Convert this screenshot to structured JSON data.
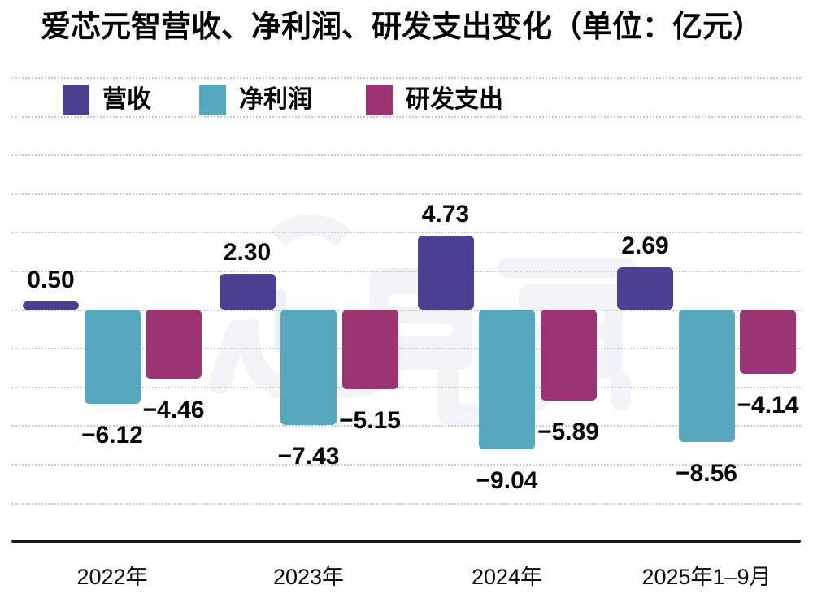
{
  "chart_data": {
    "type": "bar",
    "title": "爱芯元智营收、净利润、研发支出变化（单位：亿元）",
    "unit": "亿元",
    "categories": [
      "2022年",
      "2023年",
      "2024年",
      "2025年1–9月"
    ],
    "series": [
      {
        "name": "营收",
        "color": "#4B4090",
        "values": [
          0.5,
          2.3,
          4.73,
          2.69
        ],
        "labels": [
          "0.50",
          "2.30",
          "4.73",
          "2.69"
        ]
      },
      {
        "name": "净利润",
        "color": "#57A7BD",
        "values": [
          -6.12,
          -7.43,
          -9.04,
          -8.56
        ],
        "labels": [
          "−6.12",
          "−7.43",
          "−9.04",
          "−8.56"
        ]
      },
      {
        "name": "研发支出",
        "color": "#9A3473",
        "values": [
          -4.46,
          -5.15,
          -5.89,
          -4.14
        ],
        "labels": [
          "−4.46",
          "−5.15",
          "−5.89",
          "−4.14"
        ]
      }
    ],
    "ylim": [
      -12.5,
      15
    ],
    "grid_step": 2.5,
    "grid": "dotted-horizontal",
    "legend_position": "top-left",
    "baseline": 0
  },
  "watermark": "芯东西",
  "colors": {
    "background": "#ffffff",
    "gridline": "#c9c9c9",
    "axis_line": "#1b1b1b",
    "text": "#000000"
  }
}
